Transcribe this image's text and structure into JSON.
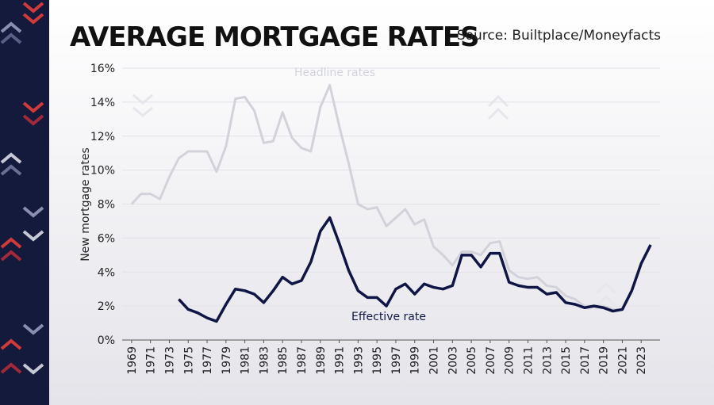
{
  "chart_data": {
    "type": "line",
    "title": "AVERAGE MORTGAGE RATES",
    "source": "Source: Builtplace/Moneyfacts",
    "y_label": "New mortgage rates",
    "x": [
      1969,
      1970,
      1971,
      1972,
      1973,
      1974,
      1975,
      1976,
      1977,
      1978,
      1979,
      1980,
      1981,
      1982,
      1983,
      1984,
      1985,
      1986,
      1987,
      1988,
      1989,
      1990,
      1991,
      1992,
      1993,
      1994,
      1995,
      1996,
      1997,
      1998,
      1999,
      2000,
      2001,
      2002,
      2003,
      2004,
      2005,
      2006,
      2007,
      2008,
      2009,
      2010,
      2011,
      2012,
      2013,
      2014,
      2015,
      2016,
      2017,
      2018,
      2019,
      2020,
      2021,
      2022,
      2023,
      2024
    ],
    "series": [
      {
        "name": "Headline rates",
        "color": "#d2d3da",
        "values": [
          8.0,
          8.6,
          8.6,
          8.3,
          9.6,
          10.7,
          11.1,
          11.1,
          11.1,
          9.9,
          11.4,
          14.2,
          14.3,
          13.5,
          11.6,
          11.7,
          13.4,
          11.9,
          11.3,
          11.1,
          13.7,
          15.0,
          12.6,
          10.4,
          8.0,
          7.7,
          7.8,
          6.7,
          7.2,
          7.7,
          6.8,
          7.1,
          5.5,
          5.0,
          4.4,
          5.2,
          5.2,
          5.0,
          5.7,
          5.8,
          4.1,
          3.7,
          3.6,
          3.7,
          3.2,
          3.1,
          2.6,
          2.4,
          2.0,
          2.0,
          2.0,
          1.8,
          1.8,
          null,
          null,
          null
        ]
      },
      {
        "name": "Effective rate",
        "color": "#0f1545",
        "values": [
          null,
          null,
          null,
          null,
          null,
          2.4,
          1.8,
          1.6,
          1.3,
          1.1,
          2.1,
          3.0,
          2.9,
          2.7,
          2.2,
          2.9,
          3.7,
          3.3,
          3.5,
          4.6,
          6.4,
          7.2,
          5.7,
          4.1,
          2.9,
          2.5,
          2.5,
          2.0,
          3.0,
          3.3,
          2.7,
          3.3,
          3.1,
          3.0,
          3.2,
          5.0,
          5.0,
          4.3,
          5.1,
          5.1,
          3.4,
          3.2,
          3.1,
          3.1,
          2.7,
          2.8,
          2.2,
          2.1,
          1.9,
          2.0,
          1.9,
          1.7,
          1.8,
          2.9,
          4.5,
          5.6
        ]
      }
    ],
    "xlim": [
      1968,
      2025
    ],
    "xticks": [
      1969,
      1971,
      1973,
      1975,
      1977,
      1979,
      1981,
      1983,
      1985,
      1987,
      1989,
      1991,
      1993,
      1995,
      1997,
      1999,
      2001,
      2003,
      2005,
      2007,
      2009,
      2011,
      2013,
      2015,
      2017,
      2019,
      2021,
      2023
    ],
    "ylim": [
      0,
      16
    ],
    "yticks": [
      {
        "value": 0,
        "label": "0%"
      },
      {
        "value": 2,
        "label": "2%"
      },
      {
        "value": 4,
        "label": "4%"
      },
      {
        "value": 6,
        "label": "6%"
      },
      {
        "value": 8,
        "label": "8%"
      },
      {
        "value": 10,
        "label": "10%"
      },
      {
        "value": 12,
        "label": "12%"
      },
      {
        "value": 14,
        "label": "14%"
      },
      {
        "value": 16,
        "label": "16%"
      }
    ],
    "grid": true
  }
}
